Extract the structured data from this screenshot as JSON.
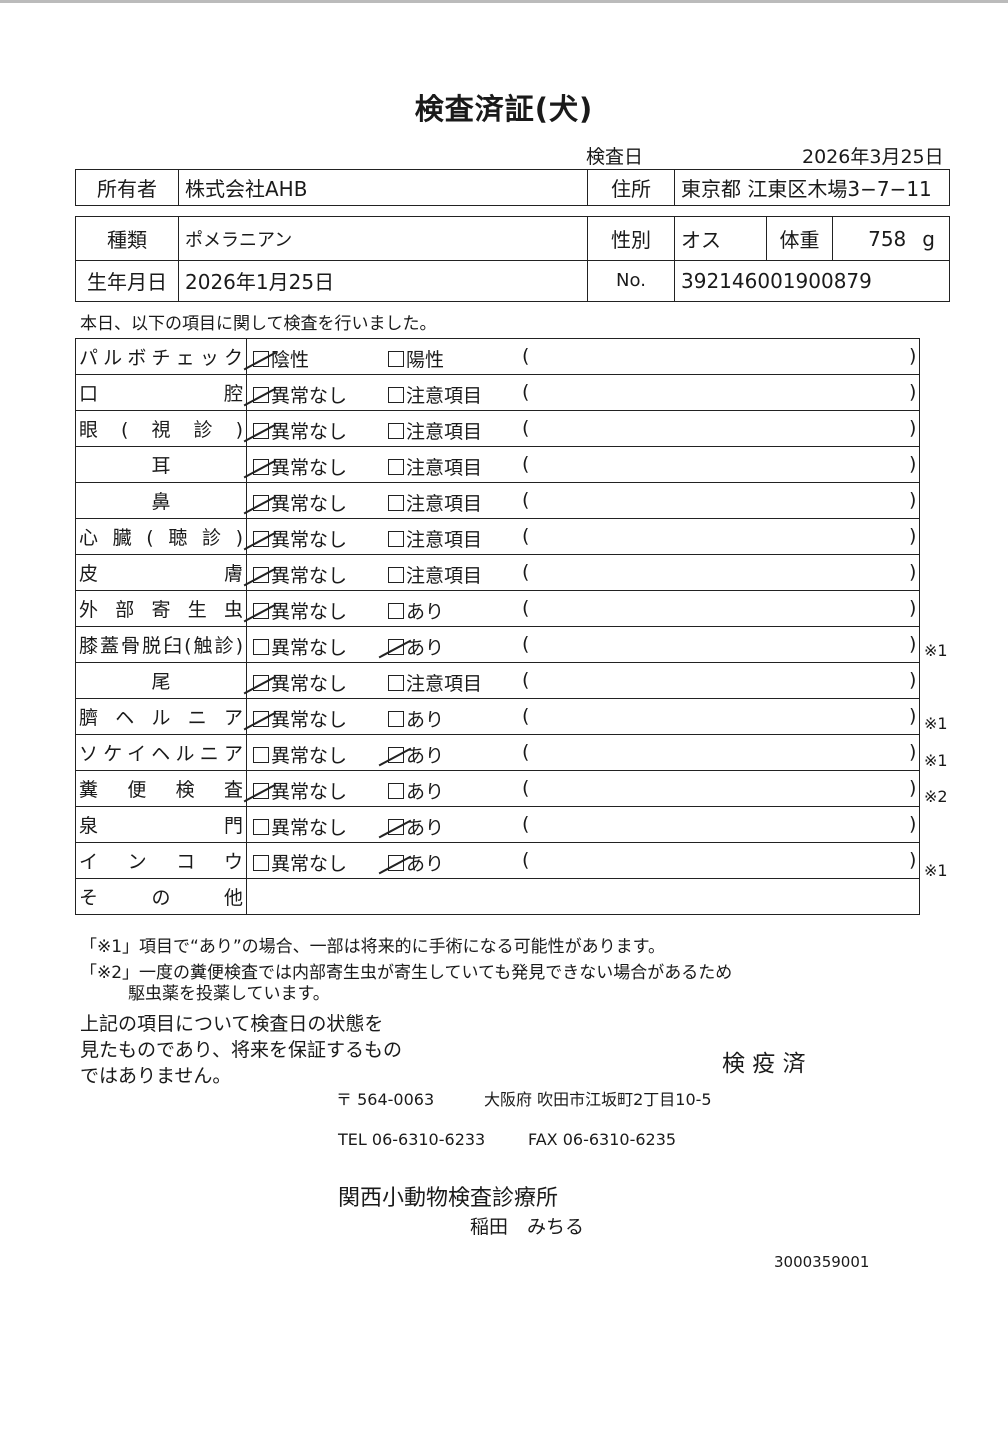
{
  "title": "検査済証(犬)",
  "exam_date_label": "検査日",
  "exam_date": "2026年3月25日",
  "owner": {
    "label": "所有者",
    "value": "株式会社AHB",
    "address_label": "住所",
    "address": "東京都 江東区木場3−7−11"
  },
  "animal": {
    "breed_label": "種類",
    "breed": "ポメラニアン",
    "sex_label": "性別",
    "sex": "オス",
    "weight_label": "体重",
    "weight": "758",
    "weight_unit": "g",
    "dob_label": "生年月日",
    "dob": "2026年1月25日",
    "no_label": "No.",
    "no": "392146001900879"
  },
  "intro": "本日、以下の項目に関して検査を行いました。",
  "items": [
    {
      "label": "パルボチェック",
      "opt1": "陰性",
      "opt2": "陽性",
      "checked": 1,
      "note": ""
    },
    {
      "label": "口腔",
      "opt1": "異常なし",
      "opt2": "注意項目",
      "checked": 1,
      "note": ""
    },
    {
      "label": "眼(視診)",
      "opt1": "異常なし",
      "opt2": "注意項目",
      "checked": 1,
      "note": ""
    },
    {
      "label": "耳",
      "opt1": "異常なし",
      "opt2": "注意項目",
      "checked": 1,
      "note": "",
      "center": true
    },
    {
      "label": "鼻",
      "opt1": "異常なし",
      "opt2": "注意項目",
      "checked": 1,
      "note": "",
      "center": true
    },
    {
      "label": "心臓(聴診)",
      "opt1": "異常なし",
      "opt2": "注意項目",
      "checked": 1,
      "note": ""
    },
    {
      "label": "皮膚",
      "opt1": "異常なし",
      "opt2": "注意項目",
      "checked": 1,
      "note": ""
    },
    {
      "label": "外部寄生虫",
      "opt1": "異常なし",
      "opt2": "あり",
      "checked": 1,
      "note": ""
    },
    {
      "label": "膝蓋骨脱臼(触診)",
      "opt1": "異常なし",
      "opt2": "あり",
      "checked": 2,
      "note": "※1"
    },
    {
      "label": "尾",
      "opt1": "異常なし",
      "opt2": "注意項目",
      "checked": 1,
      "note": "",
      "center": true
    },
    {
      "label": "臍ヘルニア",
      "opt1": "異常なし",
      "opt2": "あり",
      "checked": 1,
      "note": "※1"
    },
    {
      "label": "ソケイヘルニア",
      "opt1": "異常なし",
      "opt2": "あり",
      "checked": 2,
      "note": "※1"
    },
    {
      "label": "糞便検査",
      "opt1": "異常なし",
      "opt2": "あり",
      "checked": 1,
      "note": "※2"
    },
    {
      "label": "泉門",
      "opt1": "異常なし",
      "opt2": "あり",
      "checked": 2,
      "note": ""
    },
    {
      "label": "インコウ",
      "opt1": "異常なし",
      "opt2": "あり",
      "checked": 2,
      "note": "※1"
    }
  ],
  "other_label": "その他",
  "paren_open": "(",
  "paren_close": ")",
  "footnote1": "「※1」項目で“あり”の場合、一部は将来的に手術になる可能性があります。",
  "footnote2a": "「※2」一度の糞便検査では内部寄生虫が寄生していても発見できない場合があるため",
  "footnote2b": "駆虫薬を投薬しています。",
  "disclaimer": [
    "上記の項目について検査日の状態を",
    "見たものであり、将来を保証するもの",
    "ではありません。"
  ],
  "stamp": "検 疫 済",
  "clinic": {
    "postal": "〒 564-0063",
    "address": "大阪府 吹田市江坂町2丁目10-5",
    "tel": "TEL 06-6310-6233",
    "fax": "FAX 06-6310-6235",
    "name": "関西小動物検査診療所",
    "doctor": "稲田　みちる"
  },
  "doc_number": "3000359001"
}
